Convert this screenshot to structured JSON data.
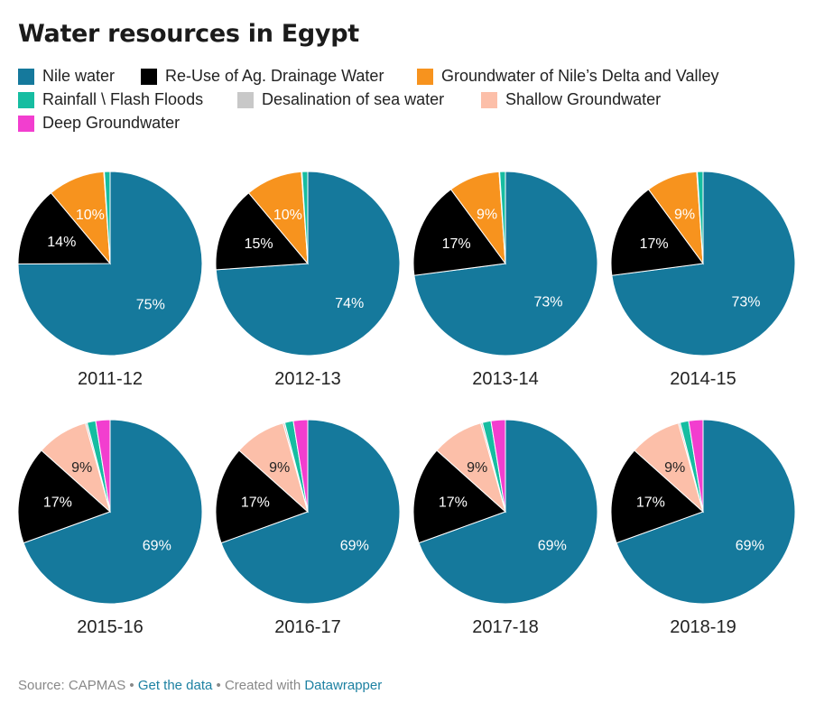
{
  "title": "Water resources in Egypt",
  "legend": [
    {
      "label": "Nile water",
      "color": "#15799c"
    },
    {
      "label": "Re-Use of Ag. Drainage Water",
      "color": "#000000"
    },
    {
      "label": "Groundwater of Nile’s Delta and Valley",
      "color": "#f7931e"
    },
    {
      "label": "Rainfall \\ Flash Floods",
      "color": "#16bda1"
    },
    {
      "label": "Desalination of sea water",
      "color": "#c8c8c8"
    },
    {
      "label": "Shallow Groundwater",
      "color": "#fcbfa9"
    },
    {
      "label": "Deep Groundwater",
      "color": "#f23ecf"
    }
  ],
  "footer": {
    "source": "Source: CAPMAS",
    "sep1": " • ",
    "get_data": "Get the data",
    "sep2": " • Created with ",
    "datawrapper": "Datawrapper"
  },
  "chart_data": {
    "type": "pie",
    "series_names": [
      "Nile water",
      "Re-Use of Ag. Drainage Water",
      "Groundwater of Nile’s Delta and Valley",
      "Rainfall \\ Flash Floods",
      "Desalination of sea water",
      "Shallow Groundwater",
      "Deep Groundwater"
    ],
    "colors": [
      "#15799c",
      "#000000",
      "#f7931e",
      "#16bda1",
      "#c8c8c8",
      "#fcbfa9",
      "#f23ecf"
    ],
    "pies": [
      {
        "label": "2011-12",
        "values": [
          75,
          14,
          10,
          1,
          0.1,
          0,
          0
        ],
        "data_labels": [
          "75%",
          "14%",
          "10%",
          "",
          "",
          "",
          ""
        ]
      },
      {
        "label": "2012-13",
        "values": [
          74,
          15,
          10,
          1,
          0.1,
          0,
          0
        ],
        "data_labels": [
          "74%",
          "15%",
          "10%",
          "",
          "",
          "",
          ""
        ]
      },
      {
        "label": "2013-14",
        "values": [
          73,
          17,
          9,
          1,
          0.1,
          0,
          0
        ],
        "data_labels": [
          "73%",
          "17%",
          "9%",
          "",
          "",
          "",
          ""
        ]
      },
      {
        "label": "2014-15",
        "values": [
          73,
          17,
          9,
          1,
          0.1,
          0,
          0
        ],
        "data_labels": [
          "73%",
          "17%",
          "9%",
          "",
          "",
          "",
          ""
        ]
      },
      {
        "label": "2015-16",
        "values": [
          69,
          17,
          0,
          1.5,
          0.3,
          9,
          2.5
        ],
        "data_labels": [
          "69%",
          "17%",
          "",
          "",
          "",
          "9%",
          ""
        ]
      },
      {
        "label": "2016-17",
        "values": [
          69,
          17,
          0,
          1.5,
          0.3,
          9,
          2.5
        ],
        "data_labels": [
          "69%",
          "17%",
          "",
          "",
          "",
          "9%",
          ""
        ]
      },
      {
        "label": "2017-18",
        "values": [
          69,
          17,
          0,
          1.5,
          0.3,
          9,
          2.5
        ],
        "data_labels": [
          "69%",
          "17%",
          "",
          "",
          "",
          "9%",
          ""
        ]
      },
      {
        "label": "2018-19",
        "values": [
          69,
          17,
          0,
          1.5,
          0.3,
          9,
          2.5
        ],
        "data_labels": [
          "69%",
          "17%",
          "",
          "",
          "",
          "9%",
          ""
        ]
      }
    ]
  }
}
